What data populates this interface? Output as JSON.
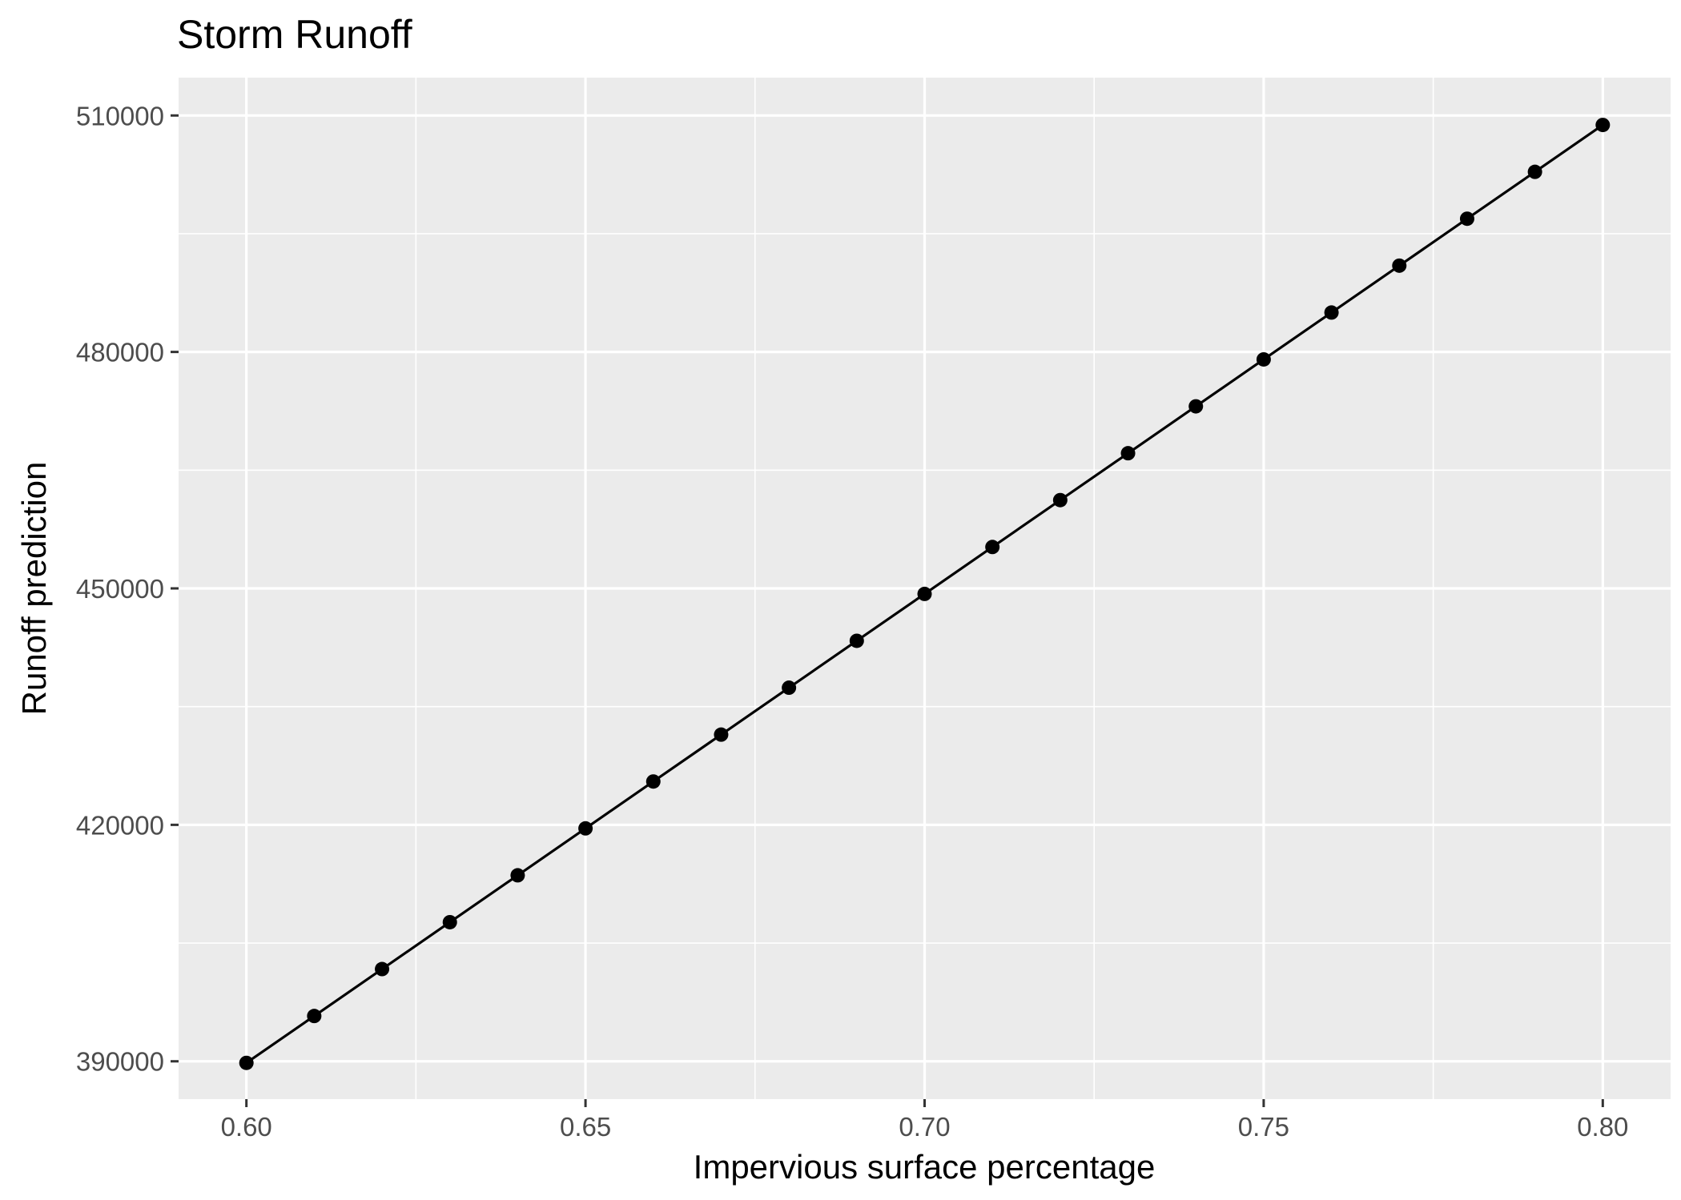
{
  "chart_data": {
    "type": "line",
    "title": "Storm Runoff",
    "xlabel": "Impervious surface percentage",
    "ylabel": "Runoff prediction",
    "xlim": [
      0.59,
      0.81
    ],
    "ylim": [
      385200,
      514800
    ],
    "x_ticks": [
      0.6,
      0.65,
      0.7,
      0.75,
      0.8
    ],
    "x_tick_labels": [
      "0.60",
      "0.65",
      "0.70",
      "0.75",
      "0.80"
    ],
    "y_ticks": [
      390000,
      420000,
      450000,
      480000,
      510000
    ],
    "y_tick_labels": [
      "390000",
      "420000",
      "450000",
      "480000",
      "510000"
    ],
    "grid": true,
    "legend": "none",
    "colors": {
      "panel": "#ebebeb",
      "grid": "#ffffff",
      "line": "#000000",
      "point": "#000000"
    },
    "series": [
      {
        "x": [
          0.6,
          0.61,
          0.62,
          0.63,
          0.64,
          0.65,
          0.66,
          0.67,
          0.68,
          0.69,
          0.7,
          0.71,
          0.72,
          0.73,
          0.74,
          0.75,
          0.76,
          0.77,
          0.78,
          0.79,
          0.8
        ],
        "y": [
          389800,
          395750,
          401700,
          407650,
          413600,
          419550,
          425500,
          431450,
          437400,
          443350,
          449300,
          455250,
          461200,
          467150,
          473100,
          479050,
          485000,
          490950,
          496900,
          502850,
          508800
        ]
      }
    ]
  }
}
